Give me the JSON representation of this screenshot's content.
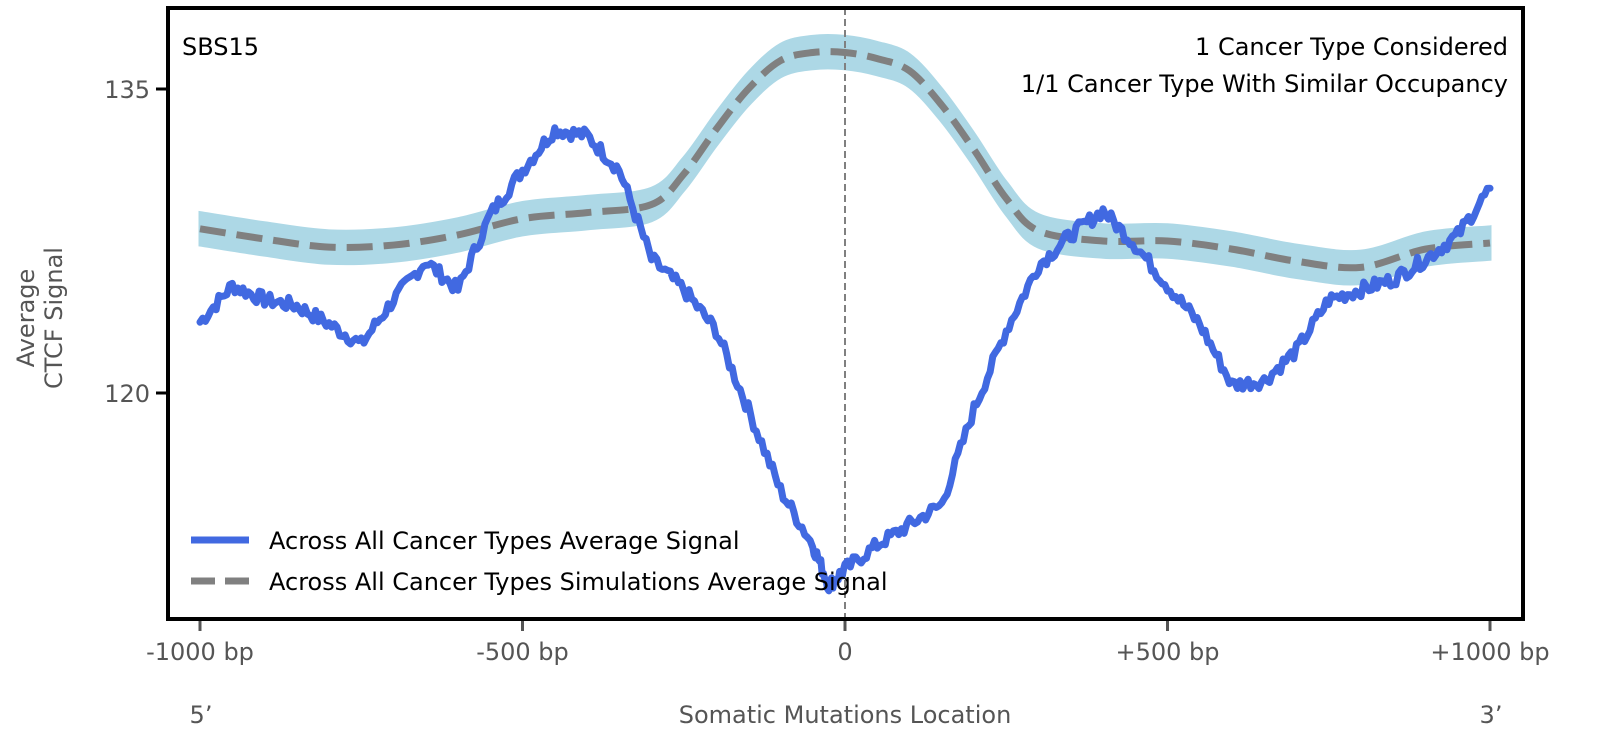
{
  "chart_data": {
    "type": "line",
    "title": "",
    "panel_label": "SBS15",
    "annotations": [
      "1 Cancer Type Considered",
      "1/1 Cancer Type With Similar Occupancy"
    ],
    "xlabel": "Somatic Mutations Location",
    "ylabel_lines": [
      "Average",
      "CTCF Signal"
    ],
    "xlim": [
      -1050,
      1050
    ],
    "ylim": [
      109.0,
      139.0
    ],
    "x_ticks": [
      {
        "value": -1000,
        "label": "-1000 bp"
      },
      {
        "value": -500,
        "label": "-500 bp"
      },
      {
        "value": 0,
        "label": "0"
      },
      {
        "value": 500,
        "label": "+500 bp"
      },
      {
        "value": 1000,
        "label": "+1000 bp"
      }
    ],
    "y_ticks": [
      {
        "value": 135,
        "label": "135"
      },
      {
        "value": 120,
        "label": "120"
      }
    ],
    "strand_labels": {
      "left": "5’",
      "right": "3’"
    },
    "center_line": {
      "x": 0,
      "style": "dashed",
      "color": "#808080"
    },
    "grid": false,
    "legend_position": "lower-left",
    "series": [
      {
        "name": "Across All Cancer Types Average Signal",
        "style": "solid",
        "color": "#4169E1",
        "x": [
          -1000,
          -950,
          -900,
          -850,
          -800,
          -750,
          -700,
          -650,
          -600,
          -550,
          -500,
          -450,
          -400,
          -350,
          -300,
          -250,
          -200,
          -150,
          -100,
          -50,
          -25,
          0,
          50,
          100,
          150,
          200,
          250,
          300,
          350,
          400,
          450,
          500,
          550,
          600,
          650,
          700,
          750,
          800,
          850,
          900,
          950,
          1000
        ],
        "values": [
          123.5,
          125.3,
          124.6,
          124.3,
          123.4,
          122.4,
          124.6,
          126.5,
          125.1,
          128.8,
          131.0,
          133.0,
          132.7,
          131.0,
          126.6,
          125.1,
          123.1,
          119.2,
          115.2,
          112.5,
          110.5,
          111.3,
          112.5,
          113.5,
          114.5,
          119.2,
          123.1,
          126.3,
          127.8,
          129.0,
          127.3,
          125.3,
          123.4,
          120.4,
          120.6,
          122.1,
          124.6,
          125.1,
          125.6,
          126.6,
          127.8,
          130.1
        ]
      },
      {
        "name": "Across All Cancer Types Simulations Average Signal",
        "style": "dashed",
        "color": "#808080",
        "band_color": "#ADD8E6",
        "band_halfwidth": 0.8,
        "x": [
          -1000,
          -900,
          -800,
          -700,
          -600,
          -500,
          -400,
          -300,
          -250,
          -200,
          -150,
          -100,
          -50,
          0,
          50,
          100,
          150,
          200,
          250,
          300,
          400,
          500,
          600,
          700,
          800,
          900,
          1000
        ],
        "values": [
          128.1,
          127.6,
          127.2,
          127.3,
          127.8,
          128.6,
          128.9,
          129.3,
          130.8,
          133.0,
          135.0,
          136.4,
          136.8,
          136.8,
          136.5,
          135.9,
          134.2,
          132.0,
          129.6,
          128.0,
          127.5,
          127.5,
          127.1,
          126.5,
          126.2,
          127.1,
          127.4
        ]
      }
    ]
  }
}
